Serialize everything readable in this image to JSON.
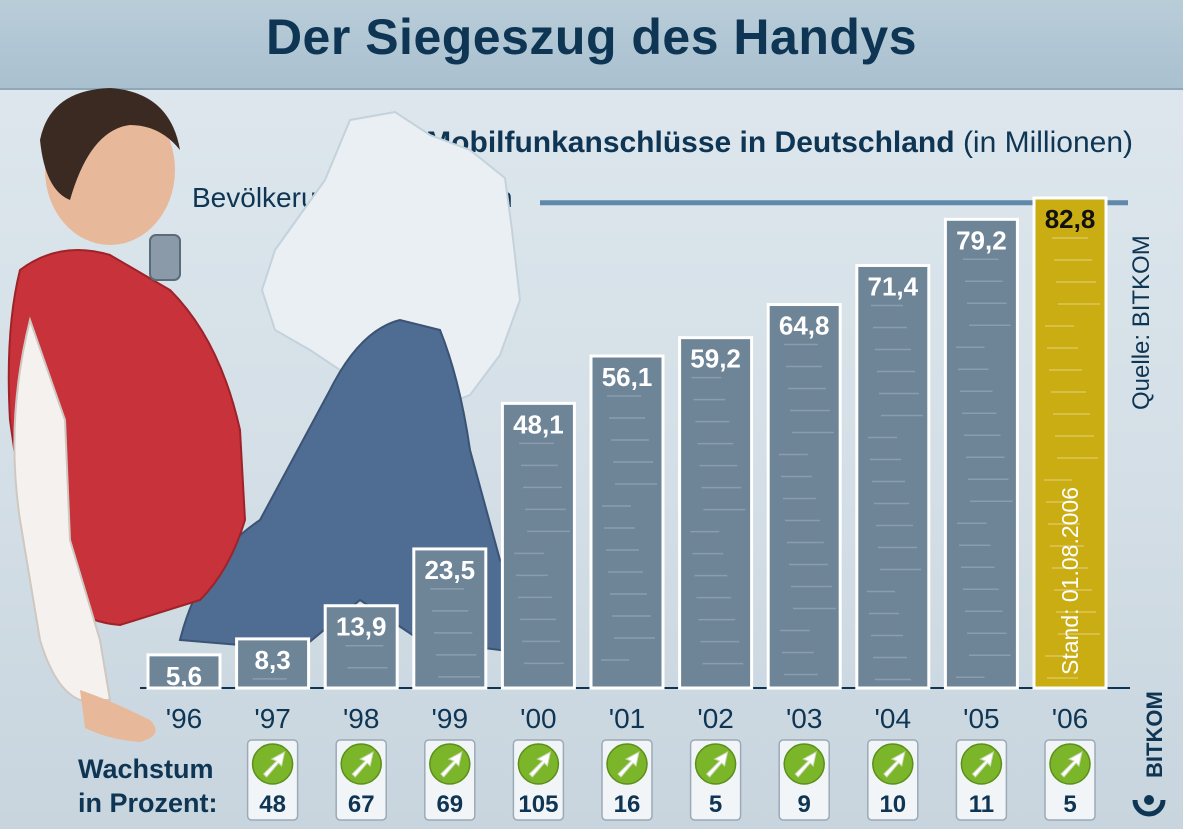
{
  "title": "Der Siegeszug des Handys",
  "subtitle_bold": "Mobilfunkanschlüsse in Deutschland",
  "subtitle_unit": "(in Millionen)",
  "population_label": "Bevölkerung: 82 Millionen",
  "source": "Quelle: BITKOM",
  "logo": "BITKOM",
  "growth_label_1": "Wachstum",
  "growth_label_2": "in Prozent:",
  "stand_note": "Stand: 01.08.2006",
  "colors": {
    "bar": "#6e8497",
    "highlight_bar": "#c9ad12",
    "text_dark": "#0e3553",
    "arrow_green": "#7bb52a"
  },
  "chart_data": {
    "type": "bar",
    "title": "Der Siegeszug des Handys",
    "ylabel": "Mobilfunkanschlüsse in Deutschland (in Millionen)",
    "categories": [
      "'96",
      "'97",
      "'98",
      "'99",
      "'00",
      "'01",
      "'02",
      "'03",
      "'04",
      "'05",
      "'06"
    ],
    "values": [
      5.6,
      8.3,
      13.9,
      23.5,
      48.1,
      56.1,
      59.2,
      64.8,
      71.4,
      79.2,
      82.8
    ],
    "value_labels": [
      "5,6",
      "8,3",
      "13,9",
      "23,5",
      "48,1",
      "56,1",
      "59,2",
      "64,8",
      "71,4",
      "79,2",
      "82,8"
    ],
    "growth_percent": [
      48,
      67,
      69,
      105,
      16,
      5,
      9,
      10,
      11,
      5
    ],
    "reference_line": {
      "value": 82
    },
    "highlight_category": "'06",
    "ylim": [
      0,
      90
    ]
  }
}
